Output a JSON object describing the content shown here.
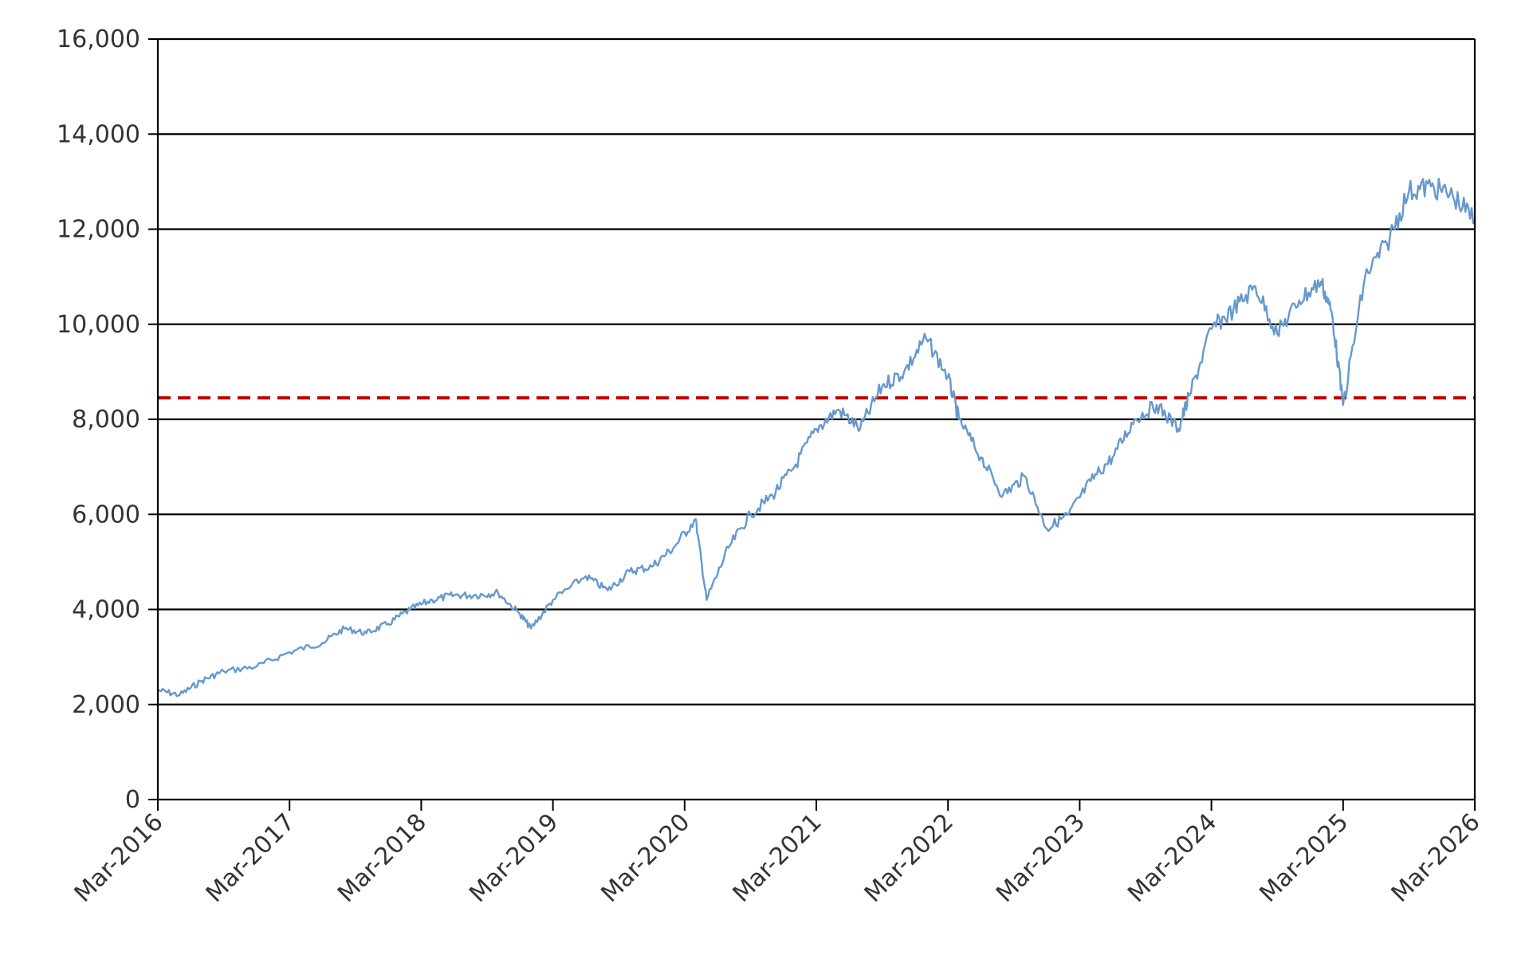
{
  "chart_data": {
    "type": "line",
    "title": "",
    "xlabel": "",
    "ylabel": "",
    "x_ticks": [
      "Mar-2016",
      "Mar-2017",
      "Mar-2018",
      "Mar-2019",
      "Mar-2020",
      "Mar-2021",
      "Mar-2022",
      "Mar-2023",
      "Mar-2024",
      "Mar-2025",
      "Mar-2026"
    ],
    "y_ticks": [
      "0",
      "2,000",
      "4,000",
      "6,000",
      "8,000",
      "10,000",
      "12,000",
      "14,000",
      "16,000"
    ],
    "xlim": [
      "2016-03",
      "2026-03"
    ],
    "ylim": [
      0,
      16000
    ],
    "grid": "horizontal",
    "colors": {
      "series": "#6699cc",
      "reference": "#c00000",
      "grid": "#000000"
    },
    "reference_line": {
      "y": 8450,
      "style": "dashed"
    },
    "series": [
      {
        "values": [
          [
            "2016-03",
            2300
          ],
          [
            "2016-05",
            2200
          ],
          [
            "2016-07",
            2500
          ],
          [
            "2016-09",
            2700
          ],
          [
            "2016-12",
            2800
          ],
          [
            "2017-03",
            3100
          ],
          [
            "2017-06",
            3300
          ],
          [
            "2017-08",
            3600
          ],
          [
            "2017-10",
            3500
          ],
          [
            "2017-12",
            3700
          ],
          [
            "2018-02",
            4000
          ],
          [
            "2018-04",
            4200
          ],
          [
            "2018-06",
            4300
          ],
          [
            "2018-08",
            4300
          ],
          [
            "2018-10",
            4350
          ],
          [
            "2018-12",
            3900
          ],
          [
            "2019-01",
            3600
          ],
          [
            "2019-03",
            4200
          ],
          [
            "2019-06",
            4700
          ],
          [
            "2019-08",
            4400
          ],
          [
            "2019-10",
            4800
          ],
          [
            "2019-12",
            4900
          ],
          [
            "2020-02",
            5300
          ],
          [
            "2020-04",
            5900
          ],
          [
            "2020-05",
            4200
          ],
          [
            "2020-07",
            5300
          ],
          [
            "2020-09",
            6000
          ],
          [
            "2020-11",
            6400
          ],
          [
            "2021-01",
            7000
          ],
          [
            "2021-03",
            7800
          ],
          [
            "2021-05",
            8200
          ],
          [
            "2021-07",
            7800
          ],
          [
            "2021-09",
            8700
          ],
          [
            "2021-11",
            9000
          ],
          [
            "2022-01",
            9700
          ],
          [
            "2022-03",
            8900
          ],
          [
            "2022-04",
            8000
          ],
          [
            "2022-06",
            7200
          ],
          [
            "2022-08",
            6400
          ],
          [
            "2022-10",
            6800
          ],
          [
            "2022-12",
            5700
          ],
          [
            "2023-02",
            6000
          ],
          [
            "2023-04",
            6700
          ],
          [
            "2023-06",
            7200
          ],
          [
            "2023-08",
            8000
          ],
          [
            "2023-10",
            8300
          ],
          [
            "2023-12",
            7800
          ],
          [
            "2024-01",
            8500
          ],
          [
            "2024-03",
            9900
          ],
          [
            "2024-05",
            10300
          ],
          [
            "2024-07",
            10800
          ],
          [
            "2024-09",
            9800
          ],
          [
            "2024-11",
            10500
          ],
          [
            "2025-01",
            10900
          ],
          [
            "2025-02",
            10200
          ],
          [
            "2025-03",
            8300
          ],
          [
            "2025-05",
            11000
          ],
          [
            "2025-07",
            11700
          ],
          [
            "2025-09",
            12800
          ],
          [
            "2025-11",
            12900
          ],
          [
            "2026-01",
            12700
          ],
          [
            "2026-03",
            12200
          ]
        ]
      }
    ]
  }
}
